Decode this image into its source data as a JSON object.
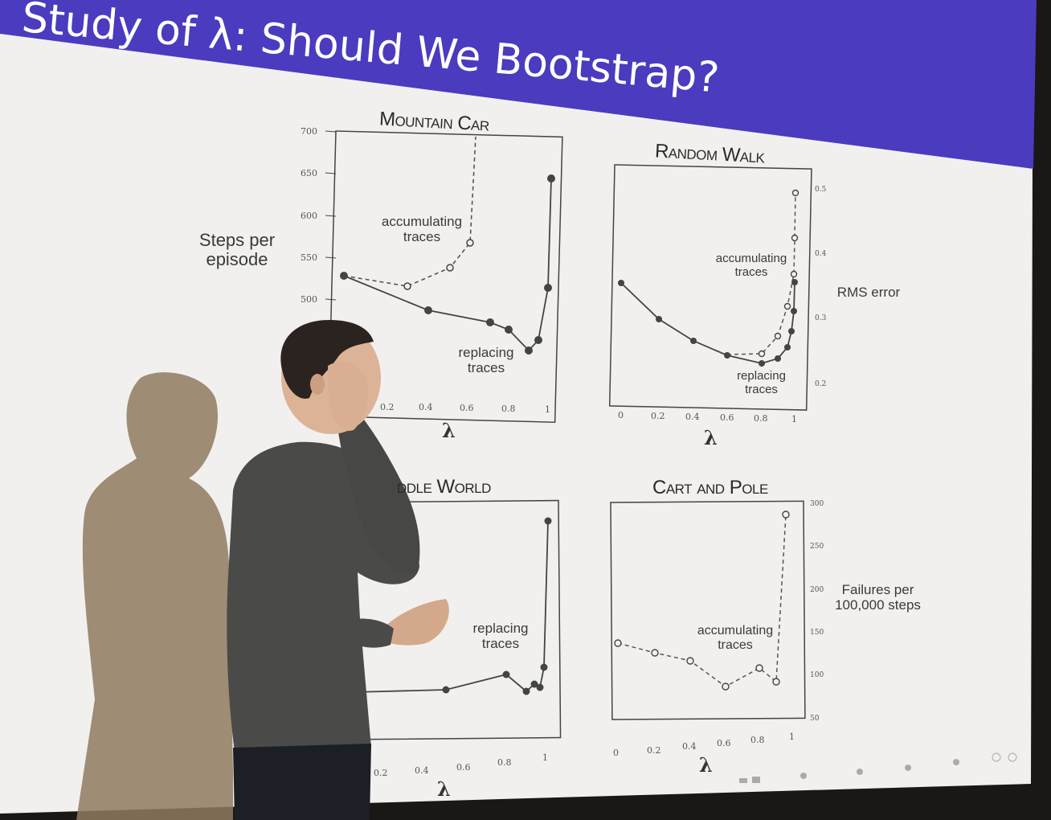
{
  "slide": {
    "title": "Study of λ: Should We Bootstrap?",
    "colors": {
      "banner": "#4a3bbf",
      "screen": "#f1f0ee",
      "room": "#1a1714",
      "ink": "#333333"
    }
  },
  "panels": {
    "mountain_car": {
      "title": "Mountain Car",
      "ylabel": "Steps per\nepisode",
      "xlabel": "λ",
      "yticks": [
        "700",
        "650",
        "600",
        "550",
        "500"
      ],
      "xticks": [
        "0.2",
        "0.4",
        "0.6",
        "0.8",
        "1"
      ],
      "label_accumulating": "accumulating\ntraces",
      "label_replacing": "replacing\ntraces"
    },
    "random_walk": {
      "title": "Random Walk",
      "ylabel": "RMS error",
      "xlabel": "λ",
      "xticks": [
        "0",
        "0.2",
        "0.4",
        "0.6",
        "0.8",
        "1"
      ],
      "yticks": [
        "0.5",
        "0.4",
        "0.3",
        "0.2"
      ],
      "label_accumulating": "accumulating\ntraces",
      "label_replacing": "replacing\ntraces"
    },
    "puddle_world": {
      "title": "ddle World",
      "xlabel": "λ",
      "xticks": [
        "0.2",
        "0.4",
        "0.6",
        "0.8",
        "1"
      ],
      "label_replacing": "replacing\ntraces"
    },
    "cart_pole": {
      "title": "Cart and Pole",
      "ylabel": "Failures per\n100,000 steps",
      "xlabel": "λ",
      "xticks": [
        "0",
        "0.2",
        "0.4",
        "0.6",
        "0.8",
        "1"
      ],
      "yticks": [
        "300",
        "250",
        "200",
        "150",
        "100",
        "50"
      ],
      "label_accumulating": "accumulating\ntraces"
    }
  }
}
